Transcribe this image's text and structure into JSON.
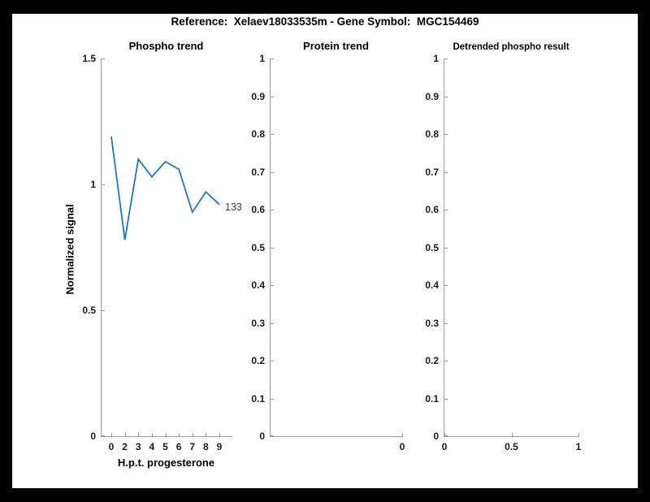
{
  "figure": {
    "title": "Reference:  Xelaev18033535m - Gene Symbol:  MGC154469",
    "background_color": "#000000",
    "canvas_color": "#ffffff",
    "axis_color": "#9a9a9a",
    "tick_label_color": "#1a1a1a"
  },
  "chart_data": [
    {
      "type": "line",
      "title": "Phospho trend",
      "xlabel": "H.p.t. progesterone",
      "ylabel": "Normalized signal",
      "ylim": [
        0,
        1.5
      ],
      "y_tick_labels": [
        "0",
        "0.5",
        "1",
        "1.5"
      ],
      "x_tick_labels": [
        "0",
        "2",
        "3",
        "4",
        "5",
        "6",
        "7",
        "8",
        "9"
      ],
      "grid": false,
      "series": [
        {
          "name": "133",
          "color": "#1a7ac4",
          "x": [
            0,
            2,
            3,
            4,
            5,
            6,
            7,
            8,
            9
          ],
          "values": [
            1.19,
            0.78,
            1.1,
            1.03,
            1.09,
            1.06,
            0.89,
            0.97,
            0.92
          ]
        }
      ],
      "end_label": "133",
      "end_label_color": "#404040"
    },
    {
      "type": "line",
      "title": "Protein trend",
      "xlabel": "",
      "ylabel": "",
      "ylim": [
        0,
        1
      ],
      "y_tick_labels": [
        "0",
        "0.1",
        "0.2",
        "0.3",
        "0.4",
        "0.5",
        "0.6",
        "0.7",
        "0.8",
        "0.9",
        "1"
      ],
      "x_tick_labels": [
        "0"
      ],
      "grid": false,
      "series": []
    },
    {
      "type": "line",
      "title": "Detrended phospho result",
      "xlabel": "",
      "ylabel": "",
      "ylim": [
        0,
        1
      ],
      "y_tick_labels": [
        "0",
        "0.1",
        "0.2",
        "0.3",
        "0.4",
        "0.5",
        "0.6",
        "0.7",
        "0.8",
        "0.9",
        "1"
      ],
      "x_tick_labels": [
        "0",
        "0.5",
        "1"
      ],
      "grid": false,
      "series": []
    }
  ]
}
